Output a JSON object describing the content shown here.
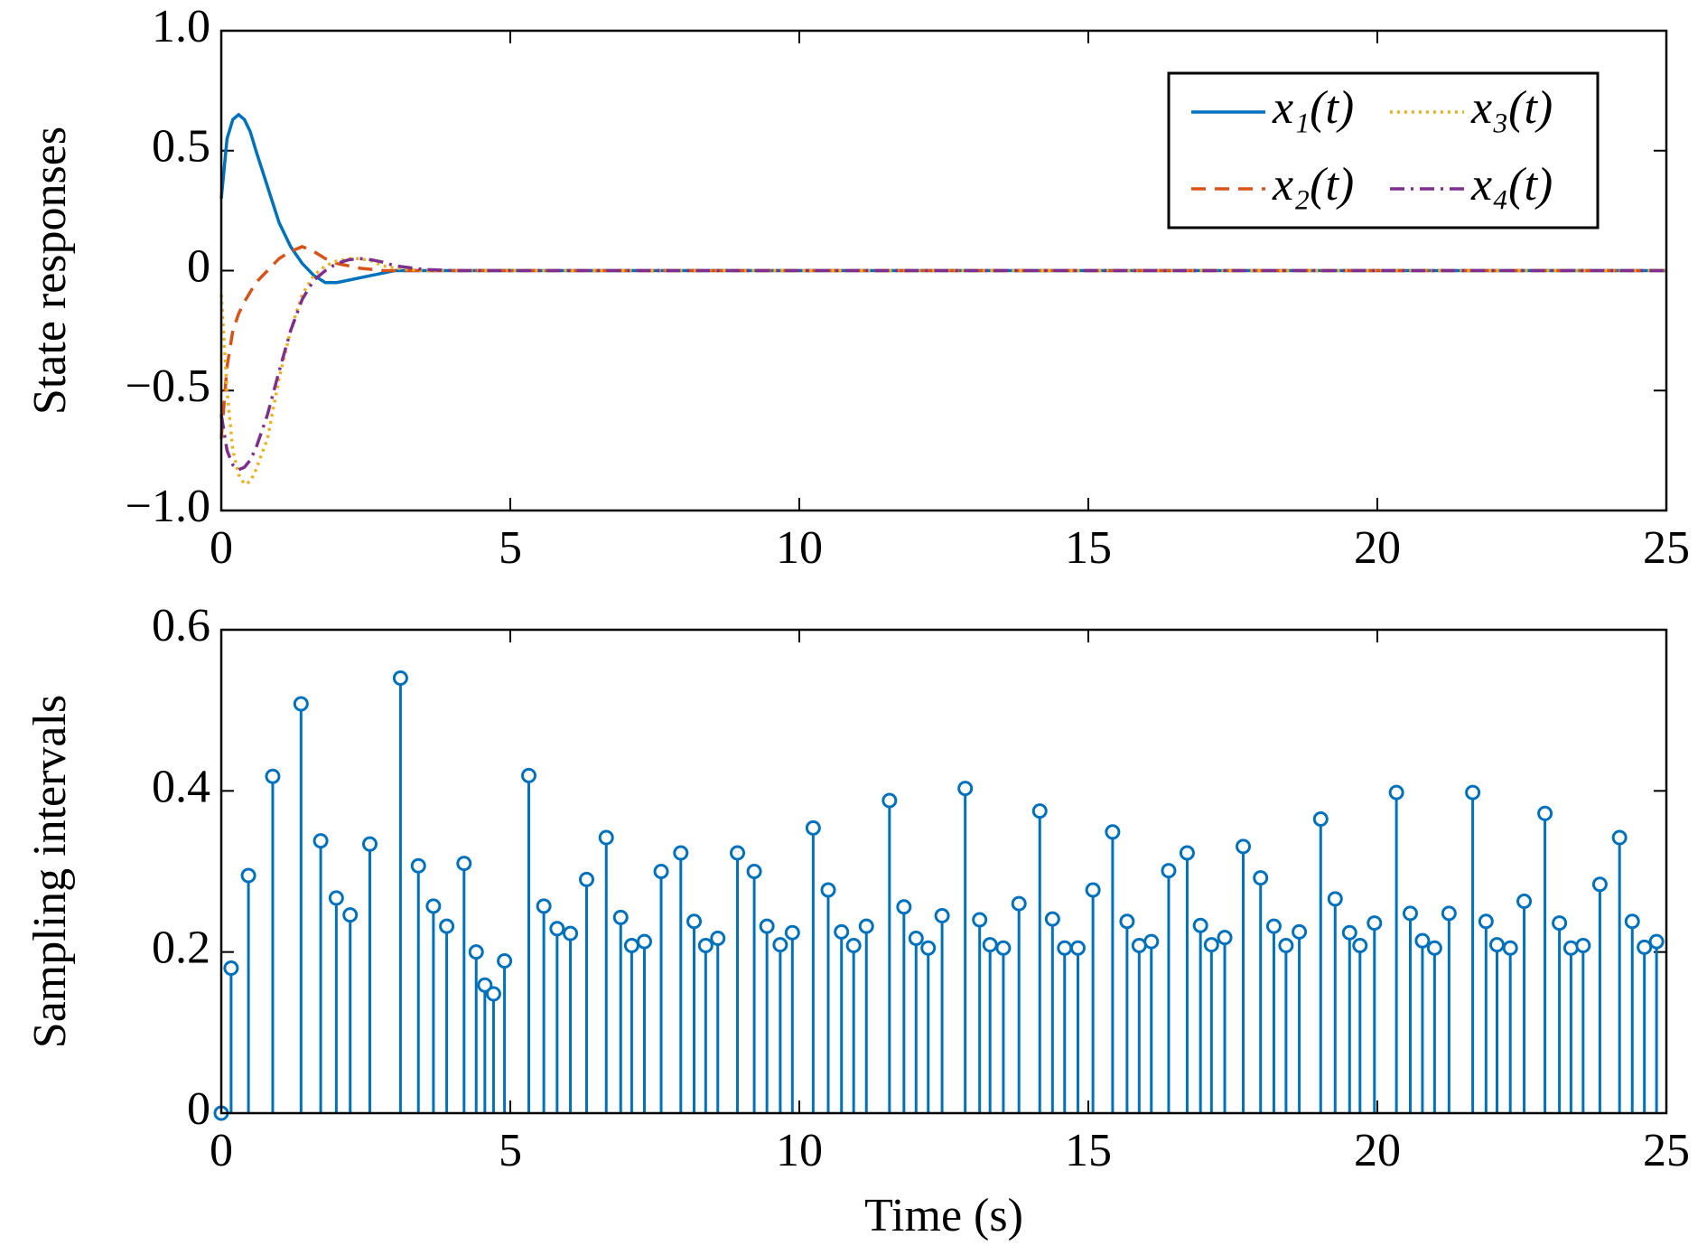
{
  "chart_data": [
    {
      "type": "line",
      "ylabel": "State responses",
      "x": [
        0,
        0.1,
        0.2,
        0.3,
        0.4,
        0.5,
        0.6,
        0.8,
        1.0,
        1.2,
        1.4,
        1.6,
        1.8,
        2.0,
        2.2,
        2.4,
        2.6,
        2.8,
        3.0,
        3.5,
        4,
        5,
        10,
        15,
        20,
        25
      ],
      "series": [
        {
          "name": "x₁(t)",
          "color": "#0072bd",
          "dash": "solid",
          "values": [
            0.3,
            0.55,
            0.63,
            0.65,
            0.63,
            0.58,
            0.5,
            0.35,
            0.2,
            0.1,
            0.03,
            -0.02,
            -0.05,
            -0.05,
            -0.04,
            -0.03,
            -0.02,
            -0.01,
            0,
            0,
            0,
            0,
            0,
            0,
            0,
            0
          ]
        },
        {
          "name": "x₂(t)",
          "color": "#d95319",
          "dash": "dashed",
          "values": [
            -0.7,
            -0.4,
            -0.25,
            -0.18,
            -0.13,
            -0.09,
            -0.05,
            0,
            0.05,
            0.08,
            0.1,
            0.08,
            0.05,
            0.03,
            0.02,
            0.01,
            0.005,
            0,
            0,
            0,
            0,
            0,
            0,
            0,
            0,
            0
          ]
        },
        {
          "name": "x₃(t)",
          "color": "#edb120",
          "dash": "dotted",
          "values": [
            -0.1,
            -0.5,
            -0.75,
            -0.85,
            -0.89,
            -0.88,
            -0.83,
            -0.7,
            -0.45,
            -0.25,
            -0.1,
            -0.02,
            0.02,
            0.04,
            0.05,
            0.05,
            0.04,
            0.02,
            0.01,
            0,
            0,
            0,
            0,
            0,
            0,
            0
          ]
        },
        {
          "name": "x₄(t)",
          "color": "#7e2f8e",
          "dash": "dashdot",
          "values": [
            -0.6,
            -0.75,
            -0.81,
            -0.83,
            -0.82,
            -0.79,
            -0.74,
            -0.6,
            -0.42,
            -0.25,
            -0.12,
            -0.04,
            0,
            0.03,
            0.045,
            0.05,
            0.045,
            0.035,
            0.02,
            0.005,
            0,
            0,
            0,
            0,
            0,
            0
          ]
        }
      ],
      "xlim": [
        0,
        25
      ],
      "xticks": [
        0,
        5,
        10,
        15,
        20,
        25
      ],
      "ylim": [
        -1,
        1
      ],
      "yticks": [
        {
          "value": -1,
          "label": "−1.0"
        },
        {
          "value": -0.5,
          "label": "−0.5"
        },
        0,
        {
          "value": 0.5,
          "label": "0.5"
        },
        {
          "value": 1,
          "label": "1.0"
        }
      ],
      "legend": "upper right",
      "grid": false
    },
    {
      "type": "stem",
      "ylabel": "Sampling intervals",
      "xlabel": "Time (s)",
      "color": "#0072bd",
      "x": [
        0,
        0.17,
        0.47,
        0.89,
        1.38,
        1.72,
        1.99,
        2.23,
        2.57,
        3.1,
        3.41,
        3.67,
        3.9,
        4.2,
        4.41,
        4.56,
        4.71,
        4.9,
        5.32,
        5.58,
        5.81,
        6.04,
        6.32,
        6.66,
        6.91,
        7.1,
        7.32,
        7.61,
        7.95,
        8.18,
        8.38,
        8.59,
        8.93,
        9.22,
        9.44,
        9.67,
        9.88,
        10.24,
        10.5,
        10.73,
        10.94,
        11.16,
        11.56,
        11.81,
        12.02,
        12.23,
        12.47,
        12.87,
        13.12,
        13.3,
        13.53,
        13.8,
        14.16,
        14.38,
        14.59,
        14.82,
        15.08,
        15.42,
        15.67,
        15.88,
        16.09,
        16.39,
        16.71,
        16.94,
        17.13,
        17.36,
        17.68,
        17.98,
        18.21,
        18.42,
        18.65,
        19.02,
        19.27,
        19.52,
        19.7,
        19.95,
        20.33,
        20.57,
        20.78,
        20.99,
        21.24,
        21.65,
        21.88,
        22.07,
        22.3,
        22.54,
        22.9,
        23.15,
        23.35,
        23.56,
        23.85,
        24.19,
        24.41,
        24.62,
        24.83
      ],
      "values": [
        0,
        0.18,
        0.295,
        0.418,
        0.508,
        0.338,
        0.267,
        0.246,
        0.334,
        0.54,
        0.307,
        0.257,
        0.232,
        0.31,
        0.2,
        0.159,
        0.148,
        0.189,
        0.419,
        0.257,
        0.229,
        0.223,
        0.29,
        0.342,
        0.243,
        0.208,
        0.213,
        0.3,
        0.323,
        0.238,
        0.208,
        0.217,
        0.323,
        0.3,
        0.232,
        0.209,
        0.224,
        0.354,
        0.277,
        0.225,
        0.208,
        0.232,
        0.388,
        0.256,
        0.217,
        0.205,
        0.245,
        0.403,
        0.24,
        0.209,
        0.205,
        0.26,
        0.375,
        0.241,
        0.205,
        0.205,
        0.277,
        0.349,
        0.238,
        0.208,
        0.213,
        0.301,
        0.323,
        0.233,
        0.209,
        0.218,
        0.331,
        0.292,
        0.232,
        0.208,
        0.225,
        0.365,
        0.266,
        0.224,
        0.208,
        0.236,
        0.398,
        0.248,
        0.214,
        0.205,
        0.248,
        0.398,
        0.238,
        0.209,
        0.205,
        0.263,
        0.372,
        0.236,
        0.205,
        0.208,
        0.284,
        0.342,
        0.238,
        0.206,
        0.213
      ],
      "xlim": [
        0,
        25
      ],
      "xticks": [
        0,
        5,
        10,
        15,
        20,
        25
      ],
      "ylim": [
        0,
        0.6
      ],
      "yticks": [
        0,
        0.2,
        0.4,
        0.6
      ],
      "grid": false
    }
  ]
}
